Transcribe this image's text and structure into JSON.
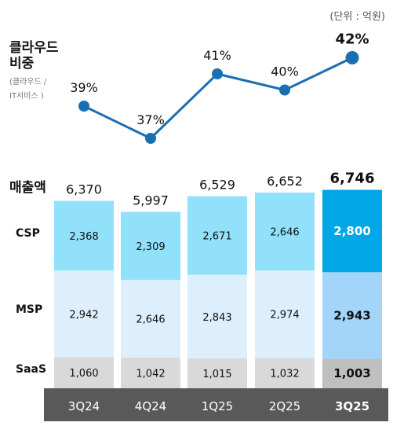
{
  "unit": "(단위 : 억원)",
  "labels": {
    "cloud_share_title_line1": "클라우드",
    "cloud_share_title_line2": "비중",
    "cloud_share_note_line1": "(클라우드 /",
    "cloud_share_note_line2": "IT서비스 )",
    "revenue_title": "매출액",
    "csp": "CSP",
    "msp": "MSP",
    "saas": "SaaS"
  },
  "colors": {
    "line": "#1a6fb3",
    "csp": "#91e1fb",
    "csp_highlight": "#00a6e5",
    "msp": "#ddeffc",
    "msp_highlight": "#a3d5fb",
    "saas": "#d9d9d9",
    "saas_highlight": "#bfbfbf",
    "axis_band": "#595959",
    "axis_text": "#ffffff"
  },
  "chart_data": [
    {
      "type": "line",
      "x": [
        "3Q24",
        "4Q24",
        "1Q25",
        "2Q25",
        "3Q25"
      ],
      "series": [
        {
          "name": "클라우드 비중",
          "values": [
            39,
            37,
            41,
            40,
            42
          ]
        }
      ],
      "data_labels": [
        "39%",
        "37%",
        "41%",
        "40%",
        "42%"
      ],
      "highlight_index": 4
    },
    {
      "type": "bar",
      "stacked": true,
      "categories": [
        "3Q24",
        "4Q24",
        "1Q25",
        "2Q25",
        "3Q25"
      ],
      "series": [
        {
          "name": "SaaS",
          "values": [
            1060,
            1042,
            1015,
            1032,
            1003
          ]
        },
        {
          "name": "MSP",
          "values": [
            2942,
            2646,
            2843,
            2974,
            2943
          ]
        },
        {
          "name": "CSP",
          "values": [
            2368,
            2309,
            2671,
            2646,
            2800
          ]
        }
      ],
      "totals": [
        6370,
        5997,
        6529,
        6652,
        6746
      ],
      "total_labels": [
        "6,370",
        "5,997",
        "6,529",
        "6,652",
        "6,746"
      ],
      "value_labels": {
        "SaaS": [
          "1,060",
          "1,042",
          "1,015",
          "1,032",
          "1,003"
        ],
        "MSP": [
          "2,942",
          "2,646",
          "2,843",
          "2,974",
          "2,943"
        ],
        "CSP": [
          "2,368",
          "2,309",
          "2,671",
          "2,646",
          "2,800"
        ]
      },
      "title": "매출액",
      "highlight_index": 4
    }
  ]
}
